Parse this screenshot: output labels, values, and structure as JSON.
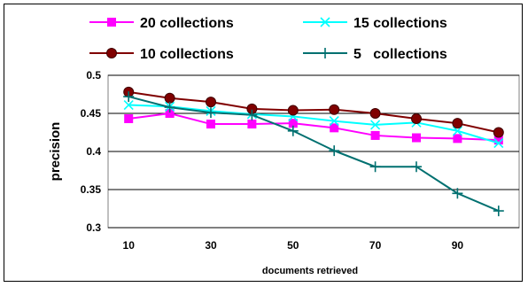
{
  "chart_data": {
    "type": "line",
    "title": "",
    "xlabel": "documents retrieved",
    "ylabel": "precision",
    "x": [
      10,
      20,
      30,
      40,
      50,
      60,
      70,
      80,
      90,
      100
    ],
    "x_tick_labels": [
      "10",
      "30",
      "50",
      "70",
      "90"
    ],
    "x_tick_values": [
      10,
      30,
      50,
      70,
      90
    ],
    "ylim": [
      0.3,
      0.5
    ],
    "y_tick_values": [
      0.3,
      0.35,
      0.4,
      0.45,
      0.5
    ],
    "y_tick_labels": [
      "0.3",
      "0.35",
      "0.4",
      "0.45",
      "0.5"
    ],
    "grid": "horizontal",
    "legend": "top",
    "series": [
      {
        "name": "20 collections",
        "color": "#ff00ff",
        "marker": "square",
        "values": [
          0.443,
          0.45,
          0.436,
          0.436,
          0.437,
          0.431,
          0.421,
          0.418,
          0.417,
          0.415
        ]
      },
      {
        "name": "15 collections",
        "color": "#00ffff",
        "marker": "x",
        "values": [
          0.461,
          0.459,
          0.453,
          0.449,
          0.446,
          0.44,
          0.435,
          0.438,
          0.427,
          0.411
        ]
      },
      {
        "name": "10 collections",
        "color": "#800000",
        "marker": "circle",
        "values": [
          0.478,
          0.47,
          0.465,
          0.456,
          0.454,
          0.455,
          0.45,
          0.443,
          0.437,
          0.425
        ]
      },
      {
        "name": "5   collections",
        "color": "#007070",
        "marker": "plus",
        "values": [
          0.472,
          0.458,
          0.451,
          0.448,
          0.427,
          0.401,
          0.38,
          0.38,
          0.345,
          0.322
        ]
      }
    ]
  }
}
